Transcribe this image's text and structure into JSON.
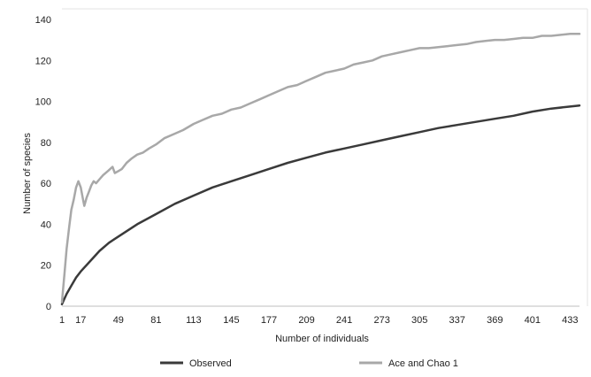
{
  "chart_data": {
    "type": "line",
    "title": "",
    "xlabel": "Number of individuals",
    "ylabel": "Number of species",
    "x_ticks": [
      "1",
      "17",
      "49",
      "81",
      "113",
      "145",
      "177",
      "209",
      "241",
      "273",
      "305",
      "337",
      "369",
      "401",
      "433"
    ],
    "xlim": [
      1,
      441
    ],
    "ylim": [
      0,
      140
    ],
    "y_ticks": [
      0,
      20,
      40,
      60,
      80,
      100,
      120,
      140
    ],
    "grid": false,
    "legend_position": "bottom",
    "series": [
      {
        "name": "Observed",
        "color": "#3a3a3a",
        "x": [
          1,
          5,
          9,
          13,
          17,
          25,
          33,
          41,
          49,
          65,
          81,
          97,
          113,
          129,
          145,
          161,
          177,
          193,
          209,
          225,
          241,
          257,
          273,
          289,
          305,
          321,
          337,
          353,
          369,
          385,
          401,
          417,
          433,
          441
        ],
        "y": [
          1,
          6,
          10,
          14,
          17,
          22,
          27,
          31,
          34,
          40,
          45,
          50,
          54,
          58,
          61,
          64,
          67,
          70,
          72.5,
          75,
          77,
          79,
          81,
          83,
          85,
          87,
          88.5,
          90,
          91.5,
          93,
          95,
          96.5,
          97.5,
          98
        ]
      },
      {
        "name": "Ace and Chao 1",
        "color": "#a8a8a8",
        "x": [
          1,
          3,
          5,
          7,
          9,
          11,
          13,
          15,
          17,
          19,
          20,
          22,
          24,
          26,
          28,
          30,
          33,
          36,
          40,
          44,
          46,
          49,
          52,
          56,
          60,
          65,
          70,
          75,
          81,
          88,
          96,
          104,
          113,
          121,
          129,
          137,
          145,
          153,
          161,
          169,
          177,
          185,
          193,
          201,
          209,
          217,
          225,
          233,
          241,
          249,
          257,
          265,
          273,
          281,
          289,
          297,
          305,
          313,
          321,
          329,
          337,
          345,
          353,
          361,
          369,
          377,
          385,
          393,
          401,
          409,
          417,
          425,
          433,
          441
        ],
        "y": [
          2,
          15,
          28,
          38,
          47,
          52,
          58,
          61,
          58,
          52,
          49,
          53,
          56,
          59,
          61,
          60,
          62,
          64,
          66,
          68,
          65,
          66,
          67,
          70,
          72,
          74,
          75,
          77,
          79,
          82,
          84,
          86,
          89,
          91,
          93,
          94,
          96,
          97,
          99,
          101,
          103,
          105,
          107,
          108,
          110,
          112,
          114,
          115,
          116,
          118,
          119,
          120,
          122,
          123,
          124,
          125,
          126,
          126,
          126.5,
          127,
          127.5,
          128,
          129,
          129.5,
          130,
          130,
          130.5,
          131,
          131,
          132,
          132,
          132.5,
          133,
          133
        ]
      }
    ]
  }
}
